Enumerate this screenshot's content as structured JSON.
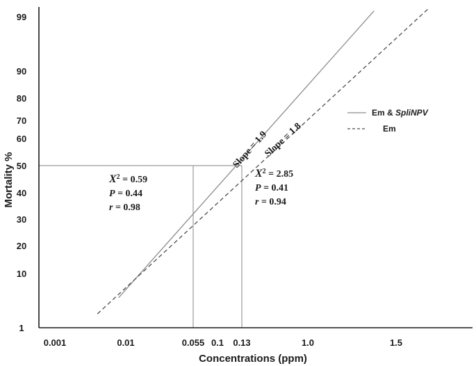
{
  "chart_data": {
    "type": "line",
    "xlabel": "Concentrations (ppm)",
    "ylabel": "Mortality %",
    "x_ticks": [
      {
        "label": "0.001",
        "pos": 0
      },
      {
        "label": "0.01",
        "pos": 1
      },
      {
        "label": "0.055",
        "pos": 1.75
      },
      {
        "label": "0.1",
        "pos": 2
      },
      {
        "label": "0.13",
        "pos": 2.3
      },
      {
        "label": "1.0",
        "pos": 3
      },
      {
        "label": "1.5",
        "pos": 4
      }
    ],
    "y_ticks": [
      99,
      90,
      80,
      70,
      60,
      50,
      40,
      30,
      20,
      10,
      1
    ],
    "series": [
      {
        "name": "Em & SpliNPV",
        "name_main": "Em & ",
        "name_italic": "SpliNPV",
        "style": "solid",
        "color": "#8c8c8c",
        "points": [
          {
            "x": 0.9,
            "y": 6
          },
          {
            "x": 3.75,
            "y": 99.6
          }
        ],
        "slope_label": "Slope = 1.9",
        "lc50": {
          "x": 1.75,
          "y": 50,
          "label": "0.055"
        },
        "stats": {
          "chi": "X",
          "chi_sup": "2",
          "chi_value": " = 0.59",
          "p": "P",
          "p_value": " = 0.44",
          "r": "r",
          "r_value": " = 0.98"
        }
      },
      {
        "name": "Em",
        "style": "dashed",
        "color": "#4d4d4d",
        "points": [
          {
            "x": 0.6,
            "y": 3.3
          },
          {
            "x": 4.5,
            "y": 99.8
          }
        ],
        "slope_label": "Slope = 1.8",
        "lc50": {
          "x": 2.3,
          "y": 50,
          "label": "0.13"
        },
        "stats": {
          "chi": "X",
          "chi_sup": "2",
          "chi_value": " = 2.85",
          "p": "P",
          "p_value": " = 0.41",
          "r": "r",
          "r_value": " = 0.94"
        }
      }
    ],
    "reference_line_y": 50,
    "grid": false,
    "legend_position": "right"
  }
}
